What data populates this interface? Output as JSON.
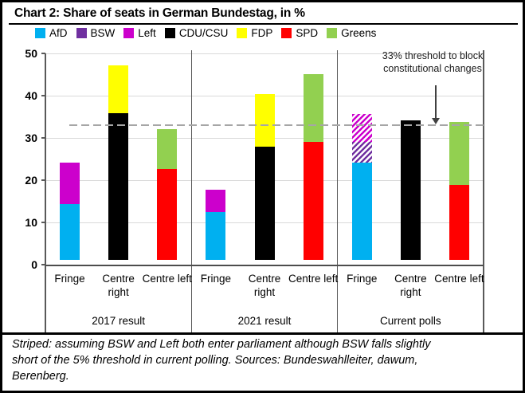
{
  "title": "Chart 2: Share of seats in German Bundestag, in %",
  "legend": [
    {
      "label": "AfD"
    },
    {
      "label": "BSW"
    },
    {
      "label": "Left"
    },
    {
      "label": "CDU/CSU"
    },
    {
      "label": "FDP"
    },
    {
      "label": "SPD"
    },
    {
      "label": "Greens"
    }
  ],
  "colors": {
    "AfD": "#00b0f0",
    "BSW": "#7030a0",
    "Left": "#cc00cc",
    "CDU/CSU": "#000000",
    "FDP": "#ffff00",
    "SPD": "#ff0000",
    "Greens": "#92d050",
    "threshold_line": "#a6a6a6",
    "gridline": "#d9d9d9",
    "frame": "#595959"
  },
  "annotation": {
    "line1": "33% threshold to block",
    "line2": "constitutional changes"
  },
  "footnote_lines": [
    "Striped: assuming BSW and Left both enter parliament although BSW falls slightly",
    "short of the 5% threshold in current polling. Sources: Bundeswahlleiter, dawum,",
    "Berenberg."
  ],
  "chart_data": {
    "type": "bar",
    "stacked": true,
    "ylim": [
      0,
      50
    ],
    "yticks": [
      0,
      10,
      20,
      30,
      40,
      50
    ],
    "grid": true,
    "legend_position": "top",
    "threshold": {
      "value": 33,
      "label": "33% threshold to block constitutional changes"
    },
    "groups": [
      {
        "label": "2017 result",
        "bars": [
          {
            "category": "Fringe",
            "segments": [
              {
                "party": "AfD",
                "value": 13.3,
                "striped": false
              },
              {
                "party": "Left",
                "value": 9.7,
                "striped": false
              }
            ]
          },
          {
            "category": "Centre right",
            "segments": [
              {
                "party": "CDU/CSU",
                "value": 34.7,
                "striped": false
              },
              {
                "party": "FDP",
                "value": 11.3,
                "striped": false
              }
            ]
          },
          {
            "category": "Centre left",
            "segments": [
              {
                "party": "SPD",
                "value": 21.6,
                "striped": false
              },
              {
                "party": "Greens",
                "value": 9.4,
                "striped": false
              }
            ]
          }
        ]
      },
      {
        "label": "2021 result",
        "bars": [
          {
            "category": "Fringe",
            "segments": [
              {
                "party": "AfD",
                "value": 11.3,
                "striped": false
              },
              {
                "party": "Left",
                "value": 5.3,
                "striped": false
              }
            ]
          },
          {
            "category": "Centre right",
            "segments": [
              {
                "party": "CDU/CSU",
                "value": 26.8,
                "striped": false
              },
              {
                "party": "FDP",
                "value": 12.5,
                "striped": false
              }
            ]
          },
          {
            "category": "Centre left",
            "segments": [
              {
                "party": "SPD",
                "value": 28.0,
                "striped": false
              },
              {
                "party": "Greens",
                "value": 16.0,
                "striped": false
              }
            ]
          }
        ]
      },
      {
        "label": "Current polls",
        "bars": [
          {
            "category": "Fringe",
            "segments": [
              {
                "party": "AfD",
                "value": 23.0,
                "striped": false
              },
              {
                "party": "BSW",
                "value": 5.0,
                "striped": true
              },
              {
                "party": "Left",
                "value": 6.5,
                "striped": true
              }
            ]
          },
          {
            "category": "Centre right",
            "segments": [
              {
                "party": "CDU/CSU",
                "value": 33.0,
                "striped": false
              }
            ]
          },
          {
            "category": "Centre left",
            "segments": [
              {
                "party": "SPD",
                "value": 17.7,
                "striped": false
              },
              {
                "party": "Greens",
                "value": 14.9,
                "striped": false
              }
            ]
          }
        ]
      }
    ]
  }
}
